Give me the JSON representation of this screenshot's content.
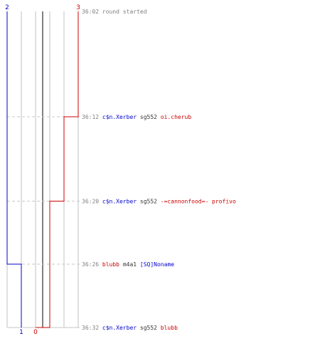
{
  "chart_data": {
    "type": "line",
    "title": "",
    "xlabel": "",
    "ylabel": "",
    "colors": {
      "team_blue": "#0000cc",
      "team_red": "#cc0000",
      "grid": "#c0c0c0",
      "event_dash": "#c8c8c8",
      "time": "#808080",
      "weapon": "#333333",
      "axis": "#808080"
    },
    "x_axis": {
      "range": [
        0,
        5
      ],
      "grid_at": [
        0,
        1,
        2,
        3,
        4,
        5
      ]
    },
    "y_axis": {
      "range": [
        "36:02",
        "36:32"
      ]
    },
    "series": [
      {
        "color": "team_blue",
        "start_label": "2",
        "end_label": "1",
        "points": [
          {
            "t": "36:02",
            "value": 0
          },
          {
            "t": "36:26",
            "value": 0
          },
          {
            "t": "36:26",
            "value": 1
          },
          {
            "t": "36:32",
            "value": 1
          }
        ]
      },
      {
        "color": "team_red",
        "start_label": "3",
        "end_label": "0",
        "points": [
          {
            "t": "36:02",
            "value": 5
          },
          {
            "t": "36:12",
            "value": 5
          },
          {
            "t": "36:12",
            "value": 4
          },
          {
            "t": "36:20",
            "value": 4
          },
          {
            "t": "36:20",
            "value": 3
          },
          {
            "t": "36:32",
            "value": 3
          },
          {
            "t": "36:32",
            "value": 2
          }
        ]
      }
    ],
    "events": [
      {
        "time": "36:02",
        "parts": [
          {
            "text": "round started",
            "color": "time"
          }
        ]
      },
      {
        "time": "36:12",
        "parts": [
          {
            "text": "c$n.Xerber",
            "color": "team_blue"
          },
          {
            "text": "sg552",
            "color": "weapon"
          },
          {
            "text": "oi.cherub",
            "color": "team_red"
          }
        ]
      },
      {
        "time": "36:20",
        "parts": [
          {
            "text": "c$n.Xerber",
            "color": "team_blue"
          },
          {
            "text": "sg552",
            "color": "weapon"
          },
          {
            "text": "-=cannonfood=- profivo",
            "color": "team_red"
          }
        ]
      },
      {
        "time": "36:26",
        "parts": [
          {
            "text": "blubb",
            "color": "team_red"
          },
          {
            "text": "m4a1",
            "color": "weapon"
          },
          {
            "text": "[SQ]Noname",
            "color": "team_blue"
          }
        ]
      },
      {
        "time": "36:32",
        "parts": [
          {
            "text": "c$n.Xerber",
            "color": "team_blue"
          },
          {
            "text": "sg552",
            "color": "weapon"
          },
          {
            "text": "blubb",
            "color": "team_red"
          }
        ]
      }
    ]
  }
}
